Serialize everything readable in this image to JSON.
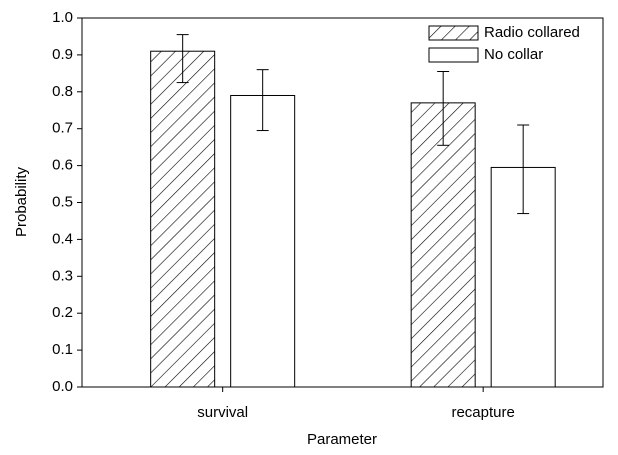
{
  "chart_data": {
    "type": "bar",
    "categories": [
      "survival",
      "recapture"
    ],
    "series": [
      {
        "name": "Radio collared",
        "color": "#ffffff",
        "hatch": true,
        "values": [
          0.91,
          0.77
        ],
        "lower": [
          0.825,
          0.655
        ],
        "upper": [
          0.955,
          0.855
        ]
      },
      {
        "name": "No collar",
        "color": "#ffffff",
        "hatch": false,
        "values": [
          0.79,
          0.595
        ],
        "lower": [
          0.695,
          0.47
        ],
        "upper": [
          0.86,
          0.71
        ]
      }
    ],
    "ylim": [
      0.0,
      1.0
    ],
    "yticks": [
      {
        "value": 0,
        "label": "0.0"
      },
      0.1,
      0.2,
      0.3,
      0.4,
      0.5,
      0.6,
      0.7,
      0.8,
      0.9,
      {
        "value": 1,
        "label": "1.0"
      }
    ],
    "xlabel": "Parameter",
    "ylabel": "Probability",
    "legend": "upper right",
    "grid": false
  }
}
